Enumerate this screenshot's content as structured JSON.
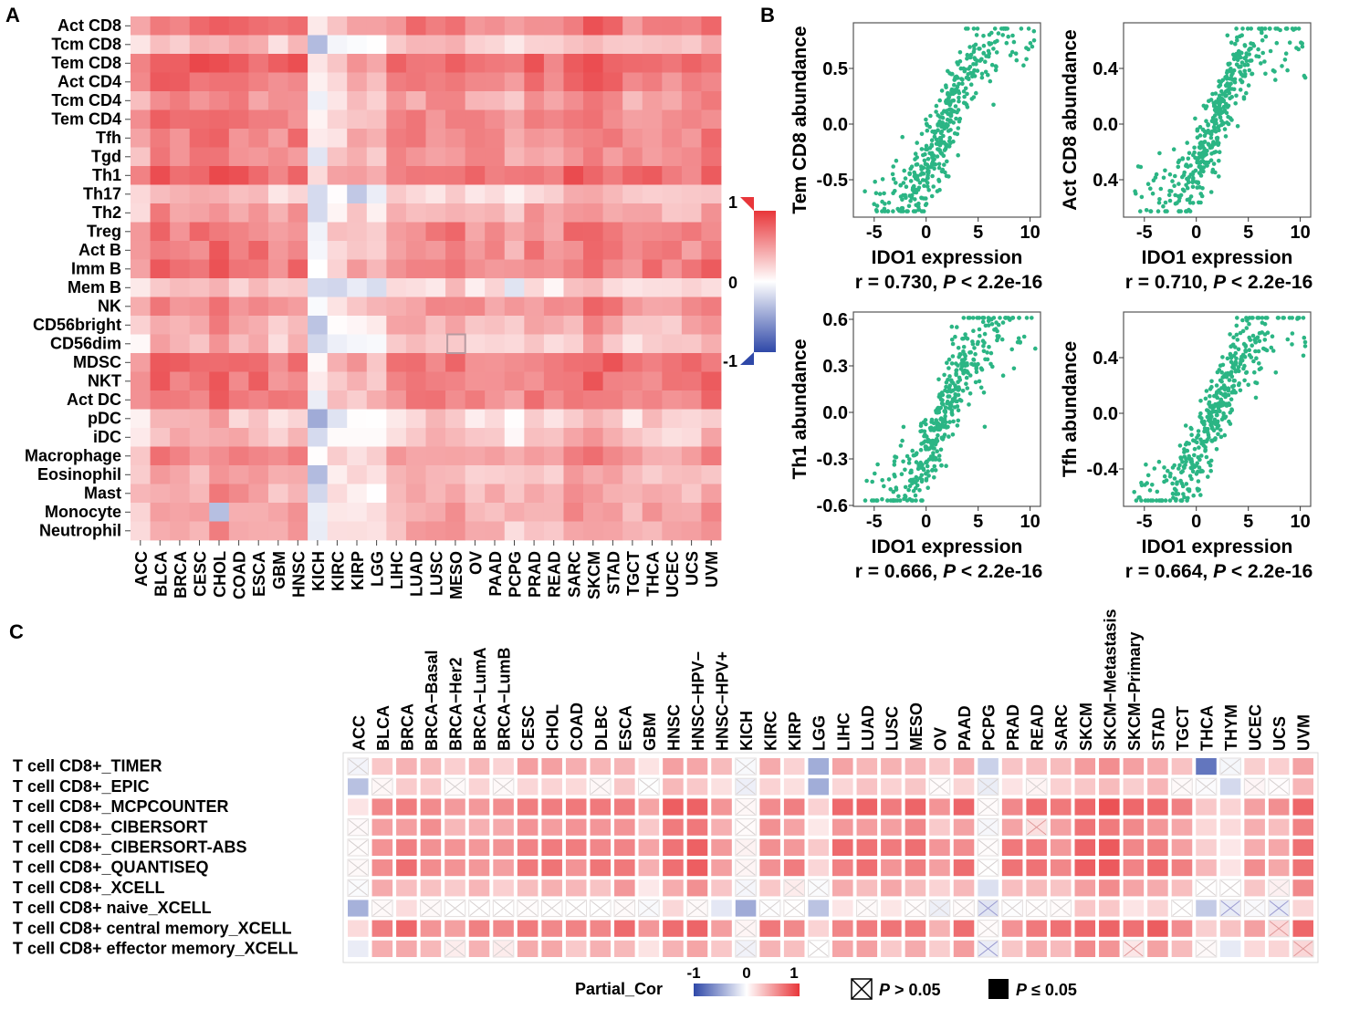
{
  "panels": {
    "a": "A",
    "b": "B",
    "c": "C"
  },
  "colors": {
    "red": "#e8363a",
    "white": "#ffffff",
    "blue": "#2f48a8",
    "green": "#2bb584",
    "sigRed": "#e5493e",
    "purple": "#8a7fc6"
  },
  "chart_data": [
    {
      "type": "heatmap",
      "panel": "A",
      "rows": [
        "Act CD8",
        "Tcm CD8",
        "Tem CD8",
        "Act CD4",
        "Tcm CD4",
        "Tem CD4",
        "Tfh",
        "Tgd",
        "Th1",
        "Th17",
        "Th2",
        "Treg",
        "Act B",
        "Imm B",
        "Mem B",
        "NK",
        "CD56bright",
        "CD56dim",
        "MDSC",
        "NKT",
        "Act DC",
        "pDC",
        "iDC",
        "Macrophage",
        "Eosinophil",
        "Mast",
        "Monocyte",
        "Neutrophil"
      ],
      "columns": [
        "ACC",
        "BLCA",
        "BRCA",
        "CESC",
        "CHOL",
        "COAD",
        "ESCA",
        "GBM",
        "HNSC",
        "KICH",
        "KIRC",
        "KIRP",
        "LGG",
        "LIHC",
        "LUAD",
        "LUSC",
        "MESO",
        "OV",
        "PAAD",
        "PCPG",
        "PRAD",
        "READ",
        "SARC",
        "SKCM",
        "STAD",
        "TGCT",
        "THCA",
        "UCEC",
        "UCS",
        "UVM"
      ],
      "row_base": [
        0.65,
        0.3,
        0.75,
        0.65,
        0.5,
        0.6,
        0.6,
        0.55,
        0.72,
        0.25,
        0.45,
        0.6,
        0.62,
        0.65,
        0.2,
        0.55,
        0.4,
        0.28,
        0.7,
        0.65,
        0.62,
        0.25,
        0.3,
        0.5,
        0.35,
        0.42,
        0.45,
        0.42
      ],
      "col_adjust": [
        -0.15,
        0.1,
        0.05,
        0.05,
        0.15,
        0.05,
        0.05,
        -0.05,
        0.05,
        -0.6,
        -0.35,
        -0.25,
        -0.3,
        -0.05,
        0,
        0,
        0.05,
        -0.05,
        -0.05,
        -0.15,
        0,
        -0.05,
        0.05,
        0.12,
        0.05,
        -0.05,
        0,
        -0.05,
        -0.05,
        0.05
      ],
      "range": [
        -1,
        1
      ],
      "legend": {
        "max": "1",
        "mid": "0",
        "min": "-1"
      }
    },
    {
      "type": "scatter",
      "panel": "B",
      "xlabel": "IDO1 expression",
      "xticks": [
        "-5",
        "0",
        "5",
        "10"
      ],
      "plots": [
        {
          "ylabel": "Tem CD8 abundance",
          "yticks": [
            "0.5",
            "0.0",
            "-0.5"
          ],
          "stat_r": "r = 0.730, ",
          "stat_p": "P",
          "stat_rest": " < 2.2e-16"
        },
        {
          "ylabel": "Act CD8 abundance",
          "yticks": [
            "0.4",
            "0.0",
            "0.4"
          ],
          "stat_r": "r = 0.710, ",
          "stat_p": "P",
          "stat_rest": " < 2.2e-16"
        },
        {
          "ylabel": "Th1 abundance",
          "yticks": [
            "0.6",
            "0.3",
            "0.0",
            "-0.3",
            "-0.6"
          ],
          "stat_r": "r = 0.666, ",
          "stat_p": "P",
          "stat_rest": " < 2.2e-16"
        },
        {
          "ylabel": "Tfh abundance",
          "yticks": [
            "0.4",
            "0.0",
            "-0.4"
          ],
          "stat_r": "r = 0.664, ",
          "stat_p": "P",
          "stat_rest": " < 2.2e-16"
        }
      ]
    },
    {
      "type": "heatmap",
      "panel": "C",
      "rows": [
        "T cell CD8+_TIMER",
        "T cell CD8+_EPIC",
        "T cell CD8+_MCPCOUNTER",
        "T cell CD8+_CIBERSORT",
        "T cell CD8+_CIBERSORT-ABS",
        "T cell CD8+_QUANTISEQ",
        "T cell CD8+_XCELL",
        "T cell CD8+ naive_XCELL",
        "T cell CD8+ central memory_XCELL",
        "T cell CD8+ effector memory_XCELL"
      ],
      "columns": [
        "ACC",
        "BLCA",
        "BRCA",
        "BRCA−Basal",
        "BRCA−Her2",
        "BRCA−LumA",
        "BRCA−LumB",
        "CESC",
        "CHOL",
        "COAD",
        "DLBC",
        "ESCA",
        "GBM",
        "HNSC",
        "HNSC−HPV−",
        "HNSC−HPV+",
        "KICH",
        "KIRC",
        "KIRP",
        "LGG",
        "LIHC",
        "LUAD",
        "LUSC",
        "MESO",
        "OV",
        "PAAD",
        "PCPG",
        "PRAD",
        "READ",
        "SARC",
        "SKCM",
        "SKCM−Metastasis",
        "SKCM−Primary",
        "STAD",
        "TGCT",
        "THCA",
        "THYM",
        "UCEC",
        "UCS",
        "UVM"
      ],
      "row_base": [
        0.35,
        0.2,
        0.65,
        0.5,
        0.6,
        0.62,
        0.35,
        0.05,
        0.62,
        0.35
      ],
      "col_adjust": [
        -0.5,
        0,
        0.05,
        0,
        -0.1,
        -0.05,
        -0.1,
        0.05,
        0.05,
        0,
        0,
        0.08,
        -0.15,
        0.12,
        0.12,
        -0.1,
        -0.5,
        0,
        -0.05,
        -0.35,
        0.05,
        0.05,
        0,
        0.05,
        -0.15,
        0.05,
        -0.55,
        0,
        0,
        0,
        0.15,
        0.15,
        0.05,
        0.1,
        -0.05,
        -0.3,
        -0.4,
        -0.1,
        -0.15,
        0.15
      ],
      "non_sig_pattern": [
        [
          0,
          0
        ],
        [
          0,
          16
        ],
        [
          0,
          36
        ],
        [
          1,
          1
        ],
        [
          1,
          10
        ],
        [
          1,
          12
        ],
        [
          1,
          16
        ],
        [
          1,
          24
        ],
        [
          1,
          26
        ],
        [
          1,
          28
        ],
        [
          1,
          37
        ],
        [
          2,
          16
        ],
        [
          2,
          26
        ],
        [
          3,
          0
        ],
        [
          3,
          16
        ],
        [
          3,
          26
        ],
        [
          3,
          28
        ],
        [
          4,
          16
        ],
        [
          4,
          26
        ],
        [
          5,
          0
        ],
        [
          5,
          16
        ],
        [
          6,
          16
        ],
        [
          6,
          18
        ],
        [
          6,
          36
        ],
        [
          6,
          38
        ],
        [
          7,
          8
        ],
        [
          7,
          18
        ],
        [
          7,
          24
        ],
        [
          7,
          26
        ],
        [
          7,
          36
        ],
        [
          7,
          38
        ],
        [
          8,
          16
        ],
        [
          8,
          38
        ],
        [
          9,
          4
        ],
        [
          9,
          6
        ],
        [
          9,
          16
        ],
        [
          9,
          26
        ],
        [
          9,
          32
        ],
        [
          9,
          39
        ]
      ],
      "range": [
        -1,
        1
      ],
      "legend": {
        "title": "Partial_Cor",
        "min": "-1",
        "mid": "0",
        "max": "1",
        "ns_label_p": "P",
        "ns_label_rest": " > 0.05",
        "sig_label_p": "P",
        "sig_label_rest": " ≤ 0.05"
      }
    }
  ]
}
